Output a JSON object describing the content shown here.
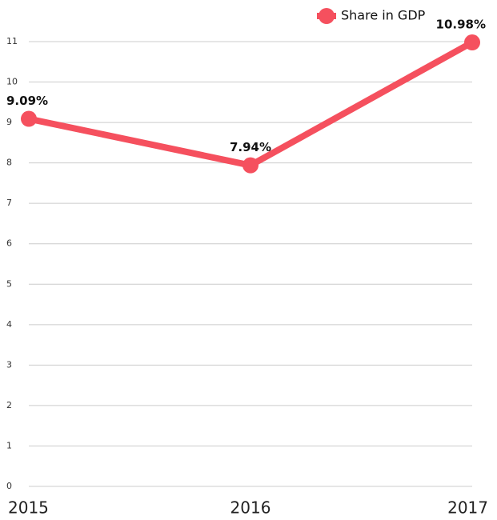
{
  "chart_data": {
    "type": "line",
    "categories": [
      "2015",
      "2016",
      "2017"
    ],
    "series": [
      {
        "name": "Share in GDP",
        "color": "#f5505e",
        "values": [
          9.09,
          7.94,
          10.98
        ],
        "value_labels": [
          "9.09%",
          "7.94%",
          "10.98%"
        ]
      }
    ],
    "ylim": [
      0,
      11
    ],
    "yticks": [
      0,
      1,
      2,
      3,
      4,
      5,
      6,
      7,
      8,
      9,
      10,
      11
    ],
    "grid": true,
    "legend": "top-right"
  }
}
